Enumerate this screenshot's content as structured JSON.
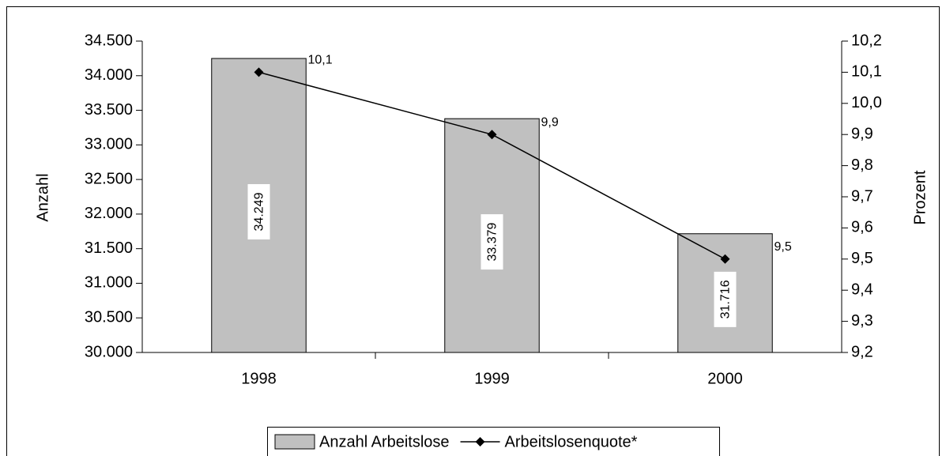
{
  "chart_data": {
    "type": "bar",
    "categories": [
      "1998",
      "1999",
      "2000"
    ],
    "series": [
      {
        "name": "Anzahl Arbeitslose",
        "type": "bar",
        "color": "#c0c0c0",
        "values": [
          34249,
          33379,
          31716
        ],
        "value_labels": [
          "34.249",
          "33.379",
          "31.716"
        ]
      },
      {
        "name": "Arbeitslosenquote*",
        "type": "line",
        "axis": "y2",
        "color": "#000000",
        "values": [
          10.1,
          9.9,
          9.5
        ],
        "value_labels": [
          "10,1",
          "9,9",
          "9,5"
        ]
      }
    ],
    "ylabel": "Anzahl",
    "y2label": "Prozent",
    "ylim": [
      30000,
      34500
    ],
    "yticks": [
      {
        "value": 30000,
        "label": "30.000"
      },
      {
        "value": 30500,
        "label": "30.500"
      },
      {
        "value": 31000,
        "label": "31.000"
      },
      {
        "value": 31500,
        "label": "31.500"
      },
      {
        "value": 32000,
        "label": "32.000"
      },
      {
        "value": 32500,
        "label": "32.500"
      },
      {
        "value": 33000,
        "label": "33.000"
      },
      {
        "value": 33500,
        "label": "33.500"
      },
      {
        "value": 34000,
        "label": "34.000"
      },
      {
        "value": 34500,
        "label": "34.500"
      }
    ],
    "y2lim": [
      9.2,
      10.2
    ],
    "y2ticks": [
      {
        "value": 9.2,
        "label": "9,2"
      },
      {
        "value": 9.3,
        "label": "9,3"
      },
      {
        "value": 9.4,
        "label": "9,4"
      },
      {
        "value": 9.5,
        "label": "9,5"
      },
      {
        "value": 9.6,
        "label": "9,6"
      },
      {
        "value": 9.7,
        "label": "9,7"
      },
      {
        "value": 9.8,
        "label": "9,8"
      },
      {
        "value": 9.9,
        "label": "9,9"
      },
      {
        "value": 10.0,
        "label": "10,0"
      },
      {
        "value": 10.1,
        "label": "10,1"
      },
      {
        "value": 10.2,
        "label": "10,2"
      }
    ],
    "legend": "bottom"
  }
}
